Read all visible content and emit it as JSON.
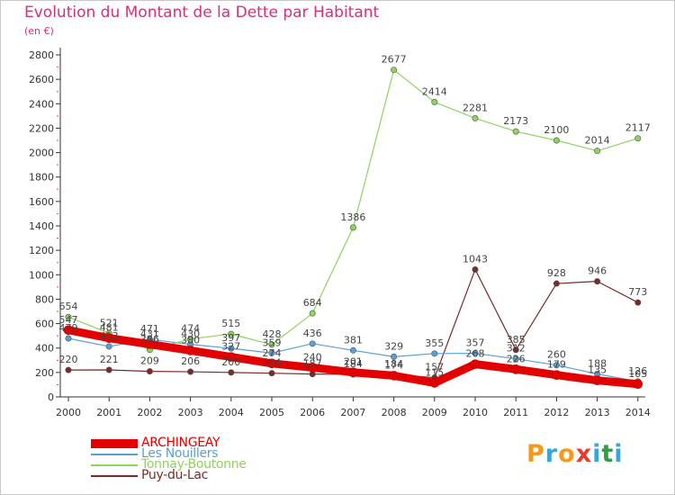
{
  "title": "Evolution du Montant de la Dette par Habitant",
  "unit_label": "(en €)",
  "brand": "Proxiti",
  "chart_data": {
    "type": "line",
    "title": "Evolution du Montant de la Dette par Habitant",
    "ylabel": "(en €)",
    "xlabel": "",
    "x": [
      "2000",
      "2001",
      "2002",
      "2003",
      "2004",
      "2005",
      "2006",
      "2007",
      "2008",
      "2009",
      "2010",
      "2011",
      "2012",
      "2013",
      "2014"
    ],
    "ylim": [
      0,
      2800
    ],
    "yticks": [
      0,
      200,
      400,
      600,
      800,
      1000,
      1200,
      1400,
      1600,
      1800,
      2000,
      2200,
      2400,
      2600,
      2800
    ],
    "grid": false,
    "legend_position": "bottom-left",
    "series": [
      {
        "name": "ARCHINGEAY",
        "color": "#e30000",
        "values": [
          547,
          481,
          431,
          380,
          327,
          274,
          240,
          201,
          174,
          115,
          268,
          226,
          179,
          135,
          105
        ],
        "labels": [
          "547",
          "481",
          "431",
          "380",
          "327",
          "274",
          "240",
          "201",
          "174",
          "115",
          "268",
          "226",
          "179",
          "135",
          "105"
        ]
      },
      {
        "name": "Les Nouillers",
        "color": "#5a9fd4",
        "values": [
          479,
          413,
          471,
          430,
          397,
          359,
          436,
          381,
          329,
          355,
          357,
          312,
          260,
          188,
          126
        ],
        "labels": [
          "479",
          "413",
          "471",
          "430",
          "397",
          "359",
          "436",
          "381",
          "329",
          "355",
          "357",
          "312",
          "260",
          "188",
          "126"
        ]
      },
      {
        "name": "Tonnay-Boutonne",
        "color": "#8fd35f",
        "values": [
          654,
          521,
          386,
          474,
          515,
          428,
          684,
          1386,
          2677,
          2414,
          2281,
          2173,
          2100,
          2014,
          2117
        ],
        "labels": [
          "654",
          "521",
          "386",
          "474",
          "515",
          "428",
          "684",
          "1386",
          "2677",
          "2414",
          "2281",
          "2173",
          "2100",
          "2014",
          "2117"
        ]
      },
      {
        "name": "Puy-du-Lac",
        "color": "#7a2a2a",
        "values": [
          220,
          221,
          209,
          206,
          200,
          194,
          187,
          184,
          184,
          157,
          1043,
          385,
          928,
          946,
          773
        ],
        "labels": [
          "220",
          "221",
          "209",
          "206",
          "200",
          "194",
          "187",
          "184",
          "184",
          "157",
          "1043",
          "385",
          "928",
          "946",
          "773"
        ]
      }
    ]
  }
}
